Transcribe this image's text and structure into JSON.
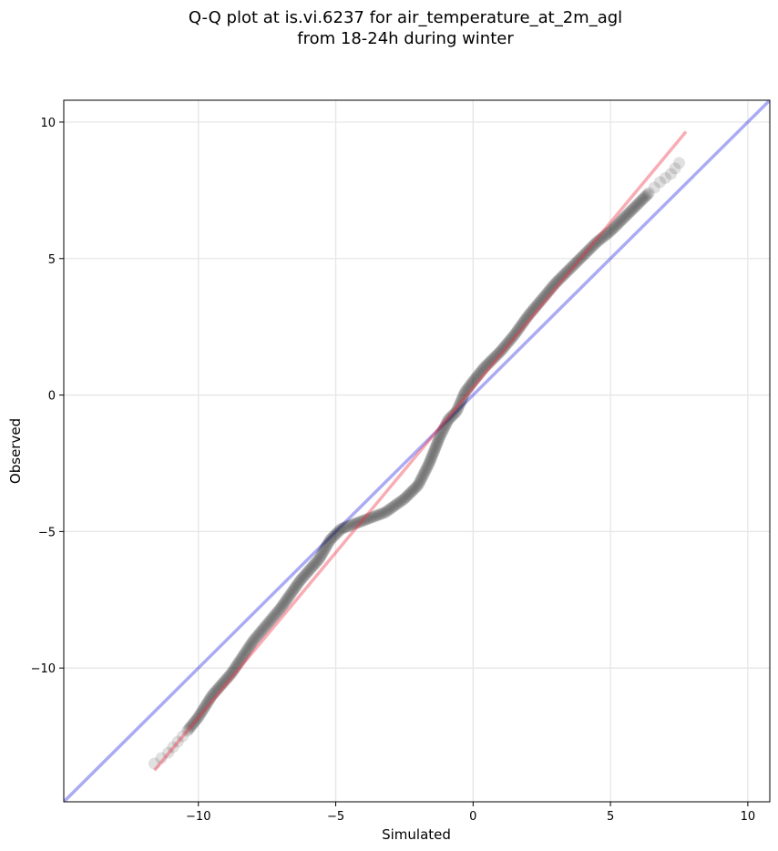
{
  "chart_data": {
    "type": "scatter",
    "title": [
      "Q-Q plot at is.vi.6237 for air_temperature_at_2m_agl",
      "from 18-24h during winter"
    ],
    "xlabel": "Simulated",
    "ylabel": "Observed",
    "xlim": [
      -14.9,
      10.8
    ],
    "ylim": [
      -14.9,
      10.8
    ],
    "xticks": [
      -10,
      -5,
      0,
      5,
      10
    ],
    "yticks": [
      -10,
      -5,
      0,
      5,
      10
    ],
    "xtick_labels": [
      "−10",
      "−5",
      "0",
      "5",
      "10"
    ],
    "ytick_labels": [
      "−10",
      "−5",
      "0",
      "5",
      "10"
    ],
    "grid": true,
    "quantile_curve": {
      "x": [
        -11.6,
        -11.1,
        -10.4,
        -10.0,
        -9.5,
        -8.8,
        -8.0,
        -7.0,
        -6.3,
        -5.6,
        -5.2,
        -4.8,
        -4.0,
        -3.2,
        -2.5,
        -2.0,
        -1.6,
        -1.2,
        -0.9,
        -0.6,
        -0.3,
        0.0,
        0.4,
        1.0,
        1.5,
        2.0,
        2.5,
        3.0,
        3.5,
        4.0,
        4.5,
        5.0,
        5.5,
        6.0,
        6.4,
        6.8,
        7.2,
        7.5
      ],
      "y": [
        -13.5,
        -13.1,
        -12.3,
        -11.8,
        -11.0,
        -10.2,
        -9.0,
        -7.8,
        -6.8,
        -6.0,
        -5.3,
        -4.9,
        -4.6,
        -4.3,
        -3.8,
        -3.3,
        -2.5,
        -1.5,
        -0.9,
        -0.6,
        0.1,
        0.5,
        1.0,
        1.6,
        2.2,
        2.9,
        3.5,
        4.1,
        4.6,
        5.1,
        5.6,
        6.0,
        6.5,
        7.0,
        7.4,
        7.8,
        8.1,
        8.5
      ]
    },
    "reference_line": {
      "x": [
        -14.9,
        10.8
      ],
      "y": [
        -14.9,
        10.8
      ],
      "color": "#0000dd"
    },
    "fit_line": {
      "x": [
        -11.6,
        7.75
      ],
      "y": [
        -13.75,
        9.65
      ],
      "color": "#ee3344"
    },
    "point_color": "#111111"
  }
}
